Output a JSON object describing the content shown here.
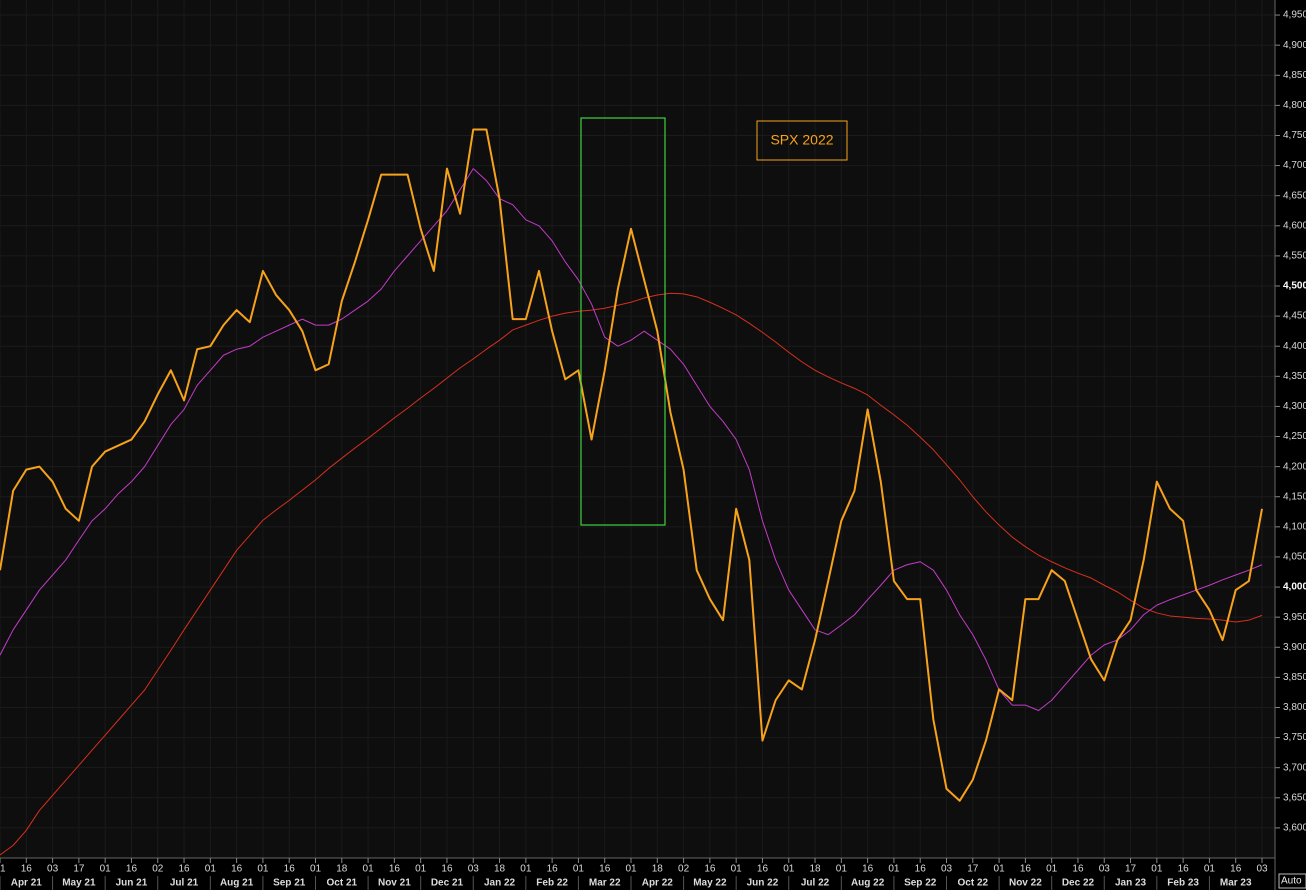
{
  "chart_data": {
    "type": "line",
    "categories": [
      "01",
      null,
      "16",
      null,
      "03",
      null,
      "17",
      null,
      "01",
      null,
      "16",
      null,
      "02",
      null,
      "16",
      null,
      "01",
      null,
      "16",
      null,
      "01",
      null,
      "16",
      null,
      "01",
      null,
      "18",
      null,
      "01",
      null,
      "16",
      null,
      "01",
      null,
      "16",
      null,
      "03",
      null,
      "18",
      null,
      "01",
      null,
      "16",
      null,
      "01",
      null,
      "16",
      null,
      "01",
      null,
      "18",
      null,
      "02",
      null,
      "16",
      null,
      "01",
      null,
      "16",
      null,
      "01",
      null,
      "18",
      null,
      "01",
      null,
      "16",
      null,
      "01",
      null,
      "16",
      null,
      "03",
      null,
      "17",
      null,
      "01",
      null,
      "16",
      null,
      "01",
      null,
      "16",
      null,
      "03",
      null,
      "17",
      null,
      "01",
      null,
      "16",
      null,
      "01",
      null,
      "16",
      null,
      "03"
    ],
    "months": [
      "Apr 21",
      "May 21",
      "Jun 21",
      "Jul 21",
      "Aug 21",
      "Sep 21",
      "Oct 21",
      "Nov 21",
      "Dec 21",
      "Jan 22",
      "Feb 22",
      "Mar 22",
      "Apr 22",
      "May 22",
      "Jun 22",
      "Jul 22",
      "Aug 22",
      "Sep 22",
      "Oct 22",
      "Nov 22",
      "Dec 22",
      "Jan 23",
      "Feb 23",
      "Mar 23"
    ],
    "series": [
      {
        "color": "#f7a21b",
        "values": [
          4028,
          4160,
          4195,
          4200,
          4175,
          4130,
          4110,
          4200,
          4225,
          4235,
          4245,
          4275,
          4320,
          4360,
          4310,
          4395,
          4400,
          4435,
          4460,
          4440,
          4525,
          4485,
          4460,
          4425,
          4360,
          4370,
          4475,
          4540,
          4610,
          4685,
          4685,
          4685,
          4595,
          4525,
          4695,
          4620,
          4760,
          4760,
          4645,
          4445,
          4445,
          4525,
          4425,
          4345,
          4360,
          4245,
          4360,
          4495,
          4595,
          4510,
          4425,
          4290,
          4195,
          4028,
          3980,
          3945,
          4130,
          4045,
          3745,
          3812,
          3845,
          3830,
          3912,
          4010,
          4110,
          4160,
          4295,
          4175,
          4010,
          3980,
          3980,
          3780,
          3665,
          3645,
          3680,
          3745,
          3830,
          3812,
          3980,
          3980,
          4028,
          4010,
          3945,
          3880,
          3845,
          3912,
          3945,
          4045,
          4175,
          4130,
          4110,
          3995,
          3962,
          3912,
          3995,
          4010,
          4130
        ]
      },
      {
        "color": "#c23cc8",
        "values": [
          3887,
          3929,
          3962,
          3995,
          4020,
          4045,
          4078,
          4110,
          4130,
          4155,
          4175,
          4200,
          4235,
          4270,
          4295,
          4335,
          4360,
          4385,
          4395,
          4400,
          4415,
          4425,
          4435,
          4445,
          4435,
          4435,
          4445,
          4460,
          4475,
          4495,
          4525,
          4550,
          4575,
          4600,
          4625,
          4660,
          4695,
          4675,
          4645,
          4635,
          4610,
          4600,
          4575,
          4540,
          4510,
          4470,
          4415,
          4400,
          4410,
          4425,
          4410,
          4395,
          4370,
          4335,
          4300,
          4275,
          4245,
          4195,
          4110,
          4045,
          3995,
          3962,
          3929,
          3921,
          3937,
          3954,
          3979,
          4003,
          4028,
          4037,
          4042,
          4028,
          3995,
          3954,
          3921,
          3879,
          3829,
          3804,
          3804,
          3795,
          3812,
          3837,
          3862,
          3887,
          3904,
          3912,
          3929,
          3954,
          3970,
          3979,
          3987,
          3995,
          4003,
          4012,
          4020,
          4028,
          4037
        ]
      },
      {
        "color": "#d6301e",
        "values": [
          3555,
          3571,
          3596,
          3629,
          3654,
          3679,
          3704,
          3729,
          3754,
          3779,
          3804,
          3829,
          3862,
          3895,
          3929,
          3962,
          3995,
          4028,
          4061,
          4086,
          4111,
          4128,
          4144,
          4161,
          4178,
          4197,
          4214,
          4231,
          4247,
          4264,
          4281,
          4297,
          4314,
          4330,
          4347,
          4364,
          4379,
          4395,
          4410,
          4427,
          4435,
          4443,
          4450,
          4455,
          4458,
          4460,
          4463,
          4468,
          4473,
          4480,
          4485,
          4488,
          4487,
          4482,
          4473,
          4463,
          4452,
          4438,
          4423,
          4407,
          4390,
          4374,
          4360,
          4349,
          4339,
          4330,
          4319,
          4302,
          4286,
          4269,
          4249,
          4228,
          4203,
          4178,
          4150,
          4125,
          4103,
          4083,
          4067,
          4053,
          4042,
          4032,
          4023,
          4015,
          4003,
          3992,
          3978,
          3965,
          3957,
          3952,
          3950,
          3948,
          3947,
          3945,
          3942,
          3945,
          3953
        ]
      }
    ],
    "ylim": [
      3550,
      4975
    ],
    "yticks": [
      {
        "value": 3600,
        "label": "3,600"
      },
      {
        "value": 3650,
        "label": "3,650"
      },
      {
        "value": 3700,
        "label": "3,700"
      },
      {
        "value": 3750,
        "label": "3,750"
      },
      {
        "value": 3800,
        "label": "3,800"
      },
      {
        "value": 3850,
        "label": "3,850"
      },
      {
        "value": 3900,
        "label": "3,900"
      },
      {
        "value": 3950,
        "label": "3,950"
      },
      {
        "value": 4000,
        "label": "4,000"
      },
      {
        "value": 4050,
        "label": "4,050"
      },
      {
        "value": 4100,
        "label": "4,100"
      },
      {
        "value": 4150,
        "label": "4,150"
      },
      {
        "value": 4200,
        "label": "4,200"
      },
      {
        "value": 4250,
        "label": "4,250"
      },
      {
        "value": 4300,
        "label": "4,300"
      },
      {
        "value": 4350,
        "label": "4,350"
      },
      {
        "value": 4400,
        "label": "4,400"
      },
      {
        "value": 4450,
        "label": "4,450"
      },
      {
        "value": 4500,
        "label": "4,500"
      },
      {
        "value": 4550,
        "label": "4,550"
      },
      {
        "value": 4600,
        "label": "4,600"
      },
      {
        "value": 4650,
        "label": "4,650"
      },
      {
        "value": 4700,
        "label": "4,700"
      },
      {
        "value": 4750,
        "label": "4,750"
      },
      {
        "value": 4800,
        "label": "4,800"
      },
      {
        "value": 4850,
        "label": "4,850"
      },
      {
        "value": 4900,
        "label": "4,900"
      },
      {
        "value": 4950,
        "label": "4,950"
      }
    ],
    "grid": true,
    "annotation": "SPX 2022",
    "scale_mode": "Auto"
  }
}
